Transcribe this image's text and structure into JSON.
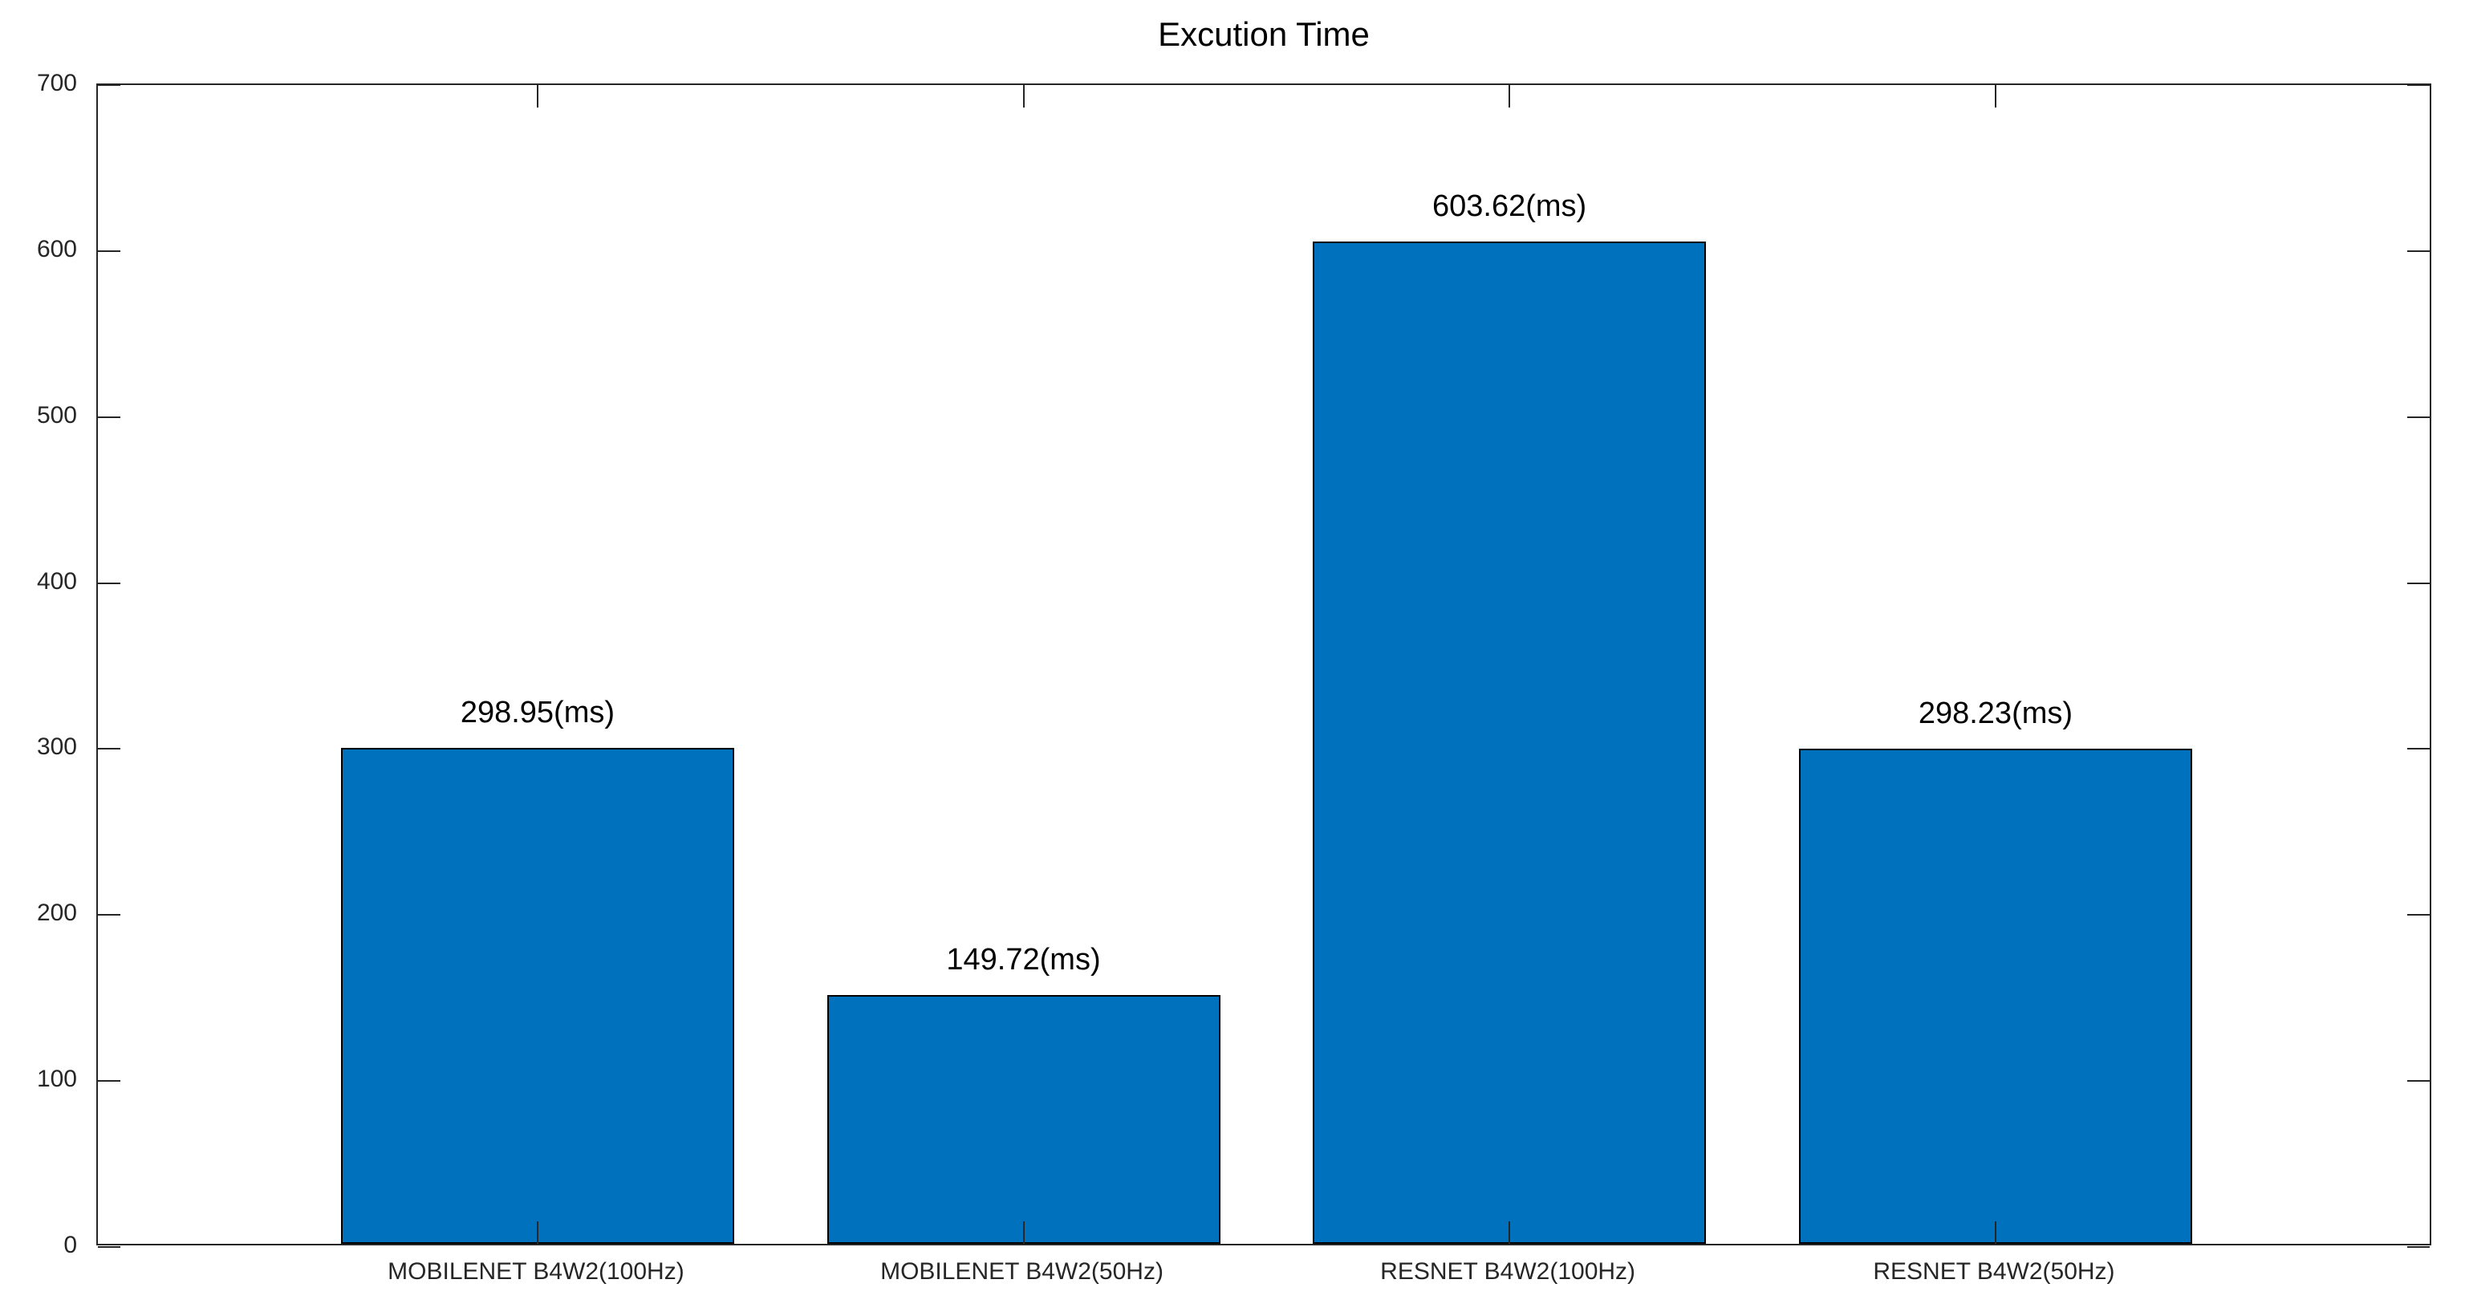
{
  "chart_data": {
    "type": "bar",
    "title": "Excution Time",
    "categories": [
      "MOBILENET B4W2(100Hz)",
      "MOBILENET B4W2(50Hz)",
      "RESNET B4W2(100Hz)",
      "RESNET B4W2(50Hz)"
    ],
    "values": [
      298.95,
      149.72,
      603.62,
      298.23
    ],
    "bar_labels": [
      "298.95(ms)",
      "149.72(ms)",
      "603.62(ms)",
      "298.23(ms)"
    ],
    "value_unit": "ms",
    "xlabel": "",
    "ylabel": "",
    "ylim": [
      0,
      700
    ],
    "ytick_values": [
      0,
      100,
      200,
      300,
      400,
      500,
      600,
      700
    ],
    "ytick_labels": [
      "0",
      "100",
      "200",
      "300",
      "400",
      "500",
      "600",
      "700"
    ],
    "grid": false,
    "legend": null,
    "box": true,
    "tick_direction": "in",
    "bar_color": "#0072BD",
    "bar_edge_color": "#000000",
    "axis_color": "#262626",
    "title_color": "#000000",
    "value_label_color": "#000000",
    "background_color": "#FFFFFF"
  }
}
